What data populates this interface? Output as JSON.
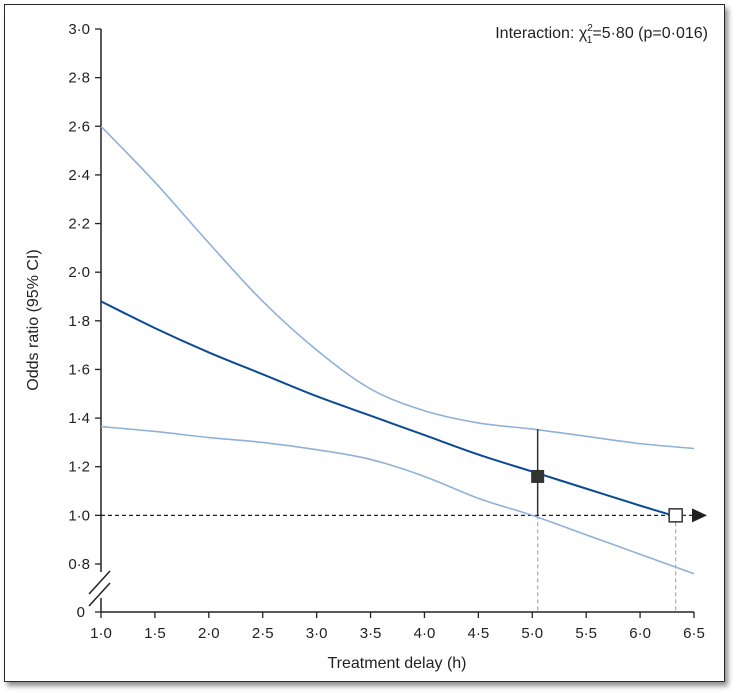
{
  "chart_data": {
    "type": "line",
    "annotation": {
      "prefix": "Interaction: χ",
      "sup": "2",
      "sub": "1",
      "rest": "=5·80 (p=0·016)"
    },
    "xlabel": "Treatment delay (h)",
    "ylabel": "Odds ratio (95% CI)",
    "xlim": [
      1.0,
      6.5
    ],
    "ylim_display": [
      0.8,
      3.0
    ],
    "x_ticks": [
      1.0,
      1.5,
      2.0,
      2.5,
      3.0,
      3.5,
      4.0,
      4.5,
      5.0,
      5.5,
      6.0,
      6.5
    ],
    "x_tick_labels": [
      "1·0",
      "1·5",
      "2·0",
      "2·5",
      "3·0",
      "3·5",
      "4·0",
      "4·5",
      "5·0",
      "5·5",
      "6·0",
      "6·5"
    ],
    "y_ticks": [
      0.8,
      1.0,
      1.2,
      1.4,
      1.6,
      1.8,
      2.0,
      2.2,
      2.4,
      2.6,
      2.8,
      3.0
    ],
    "y_tick_labels": [
      "0·8",
      "1·0",
      "1·2",
      "1·4",
      "1·6",
      "1·8",
      "2·0",
      "2·2",
      "2·4",
      "2·6",
      "2·8",
      "3·0"
    ],
    "y_zero_label": "0",
    "axis_break": true,
    "reference_line": 1.0,
    "series": [
      {
        "role": "estimate",
        "color": "#0d4a96",
        "x": [
          1.0,
          1.5,
          2.0,
          2.5,
          3.0,
          3.5,
          4.0,
          4.5,
          5.0,
          5.5,
          6.0,
          6.3
        ],
        "y": [
          1.88,
          1.77,
          1.67,
          1.58,
          1.49,
          1.41,
          1.33,
          1.25,
          1.18,
          1.11,
          1.04,
          1.0
        ]
      },
      {
        "role": "upper_ci",
        "color": "#8fb1d8",
        "x": [
          1.0,
          1.5,
          2.0,
          2.5,
          3.0,
          3.5,
          4.0,
          4.5,
          5.0,
          5.5,
          6.0,
          6.5
        ],
        "y": [
          2.6,
          2.37,
          2.12,
          1.88,
          1.68,
          1.52,
          1.43,
          1.38,
          1.355,
          1.325,
          1.295,
          1.275
        ]
      },
      {
        "role": "lower_ci",
        "color": "#8fb1d8",
        "x": [
          1.0,
          1.5,
          2.0,
          2.5,
          3.0,
          3.5,
          4.0,
          4.5,
          5.0,
          5.5,
          6.0,
          6.5
        ],
        "y": [
          1.365,
          1.345,
          1.32,
          1.3,
          1.27,
          1.23,
          1.16,
          1.07,
          1.0,
          0.92,
          0.84,
          0.76
        ]
      }
    ],
    "markers": [
      {
        "x": 5.05,
        "y": 1.16,
        "style": "filled",
        "ci_low": 1.0,
        "ci_high": 1.355,
        "color": "#333333"
      },
      {
        "x": 6.33,
        "y": 1.0,
        "style": "open",
        "color": "#333333"
      }
    ],
    "colors": {
      "axis": "#222222",
      "reference": "#222222",
      "guide": "#aaaaaa"
    }
  }
}
